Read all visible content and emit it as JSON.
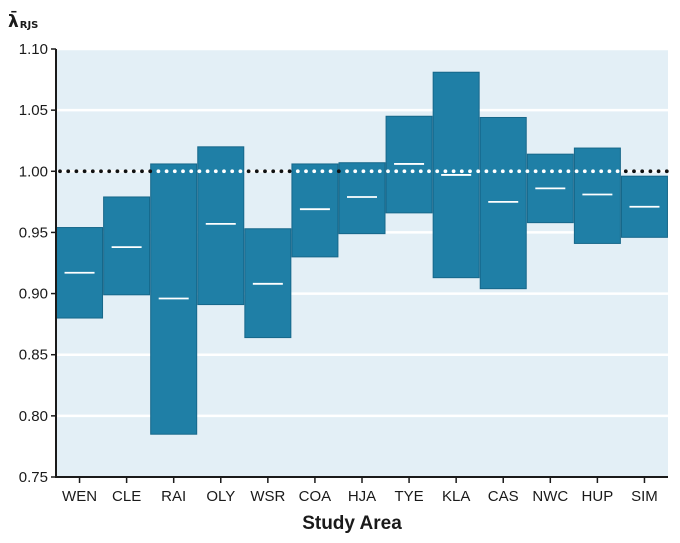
{
  "chart_data": {
    "type": "box",
    "ylabel": "λ̄",
    "ylabel_subscript": "RJS",
    "xlabel": "Study Area",
    "ylim": [
      0.75,
      1.1
    ],
    "yticks": [
      "0.75",
      "0.80",
      "0.85",
      "0.90",
      "0.95",
      "1.00",
      "1.05",
      "1.10"
    ],
    "reference_line": 1.0,
    "grid": true,
    "categories": [
      "WEN",
      "CLE",
      "RAI",
      "OLY",
      "WSR",
      "COA",
      "HJA",
      "TYE",
      "KLA",
      "CAS",
      "NWC",
      "HUP",
      "SIM"
    ],
    "series": [
      {
        "low": [
          0.88,
          0.899,
          0.785,
          0.891,
          0.864,
          0.93,
          0.949,
          0.966,
          0.913,
          0.904,
          0.958,
          0.941,
          0.946
        ],
        "mean": [
          0.917,
          0.938,
          0.896,
          0.957,
          0.908,
          0.969,
          0.979,
          1.006,
          0.997,
          0.975,
          0.986,
          0.981,
          0.971
        ],
        "high": [
          0.954,
          0.979,
          1.006,
          1.02,
          0.953,
          1.006,
          1.007,
          1.045,
          1.081,
          1.044,
          1.014,
          1.019,
          0.996
        ]
      }
    ],
    "colors": {
      "box": "#1f7fa6",
      "background": "#e3eff6",
      "grid": "#ffffff",
      "axis": "#1a1a1a",
      "reference": "#111111"
    }
  }
}
